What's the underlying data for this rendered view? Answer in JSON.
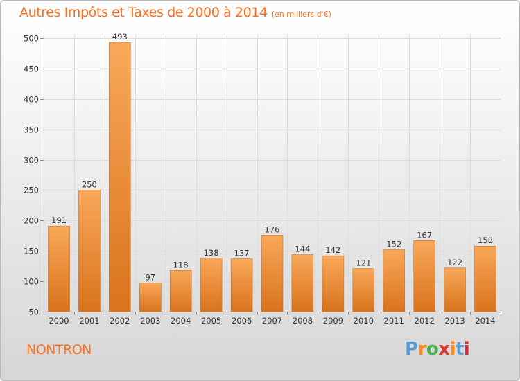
{
  "chart_data": {
    "type": "bar",
    "title": "Autres Impôts et Taxes de 2000 à 2014",
    "subtitle": "(en milliers d'€)",
    "categories": [
      "2000",
      "2001",
      "2002",
      "2003",
      "2004",
      "2005",
      "2006",
      "2007",
      "2008",
      "2009",
      "2010",
      "2011",
      "2012",
      "2013",
      "2014"
    ],
    "values": [
      191,
      250,
      493,
      97,
      118,
      138,
      137,
      176,
      144,
      142,
      121,
      152,
      167,
      122,
      158
    ],
    "ylim": [
      50,
      500
    ],
    "yticks": [
      50,
      100,
      150,
      200,
      250,
      300,
      350,
      400,
      450,
      500
    ],
    "xlabel": "",
    "ylabel": "",
    "grid": true,
    "bar_color": "#f08a2c",
    "bar_gradient": [
      "#f9a85a",
      "#d9731c"
    ]
  },
  "footer": {
    "commune": "NONTRON",
    "logo_text": "Proxiti",
    "logo_colors": [
      "#5b9bd5",
      "#ff8a1a",
      "#4caf50",
      "#d9342b",
      "#ff8a1a",
      "#5b9bd5",
      "#e2272e"
    ]
  },
  "accent_color": "#ff6f1f"
}
